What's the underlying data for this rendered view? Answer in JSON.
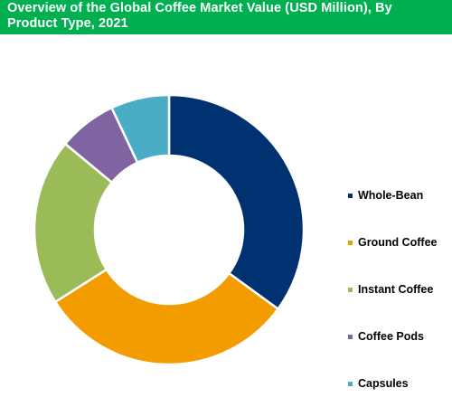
{
  "theme": {
    "title_bar_color": "#00b050",
    "title_text_color": "#ffffff",
    "slice_border_color": "#ffffff"
  },
  "chart_data": {
    "type": "pie",
    "variant": "donut",
    "title": "Overview of the Global Coffee Market Value (USD Million), By Product Type, 2021",
    "legend_position": "right",
    "categories": [
      "Whole-Bean",
      "Ground Coffee",
      "Instant Coffee",
      "Coffee Pods",
      "Capsules"
    ],
    "values": [
      35,
      31,
      20,
      7,
      7
    ],
    "colors": [
      "#003272",
      "#f39c00",
      "#9bbb59",
      "#8064a2",
      "#4bacc6"
    ],
    "start_angle_deg": 0,
    "direction": "clockwise"
  }
}
